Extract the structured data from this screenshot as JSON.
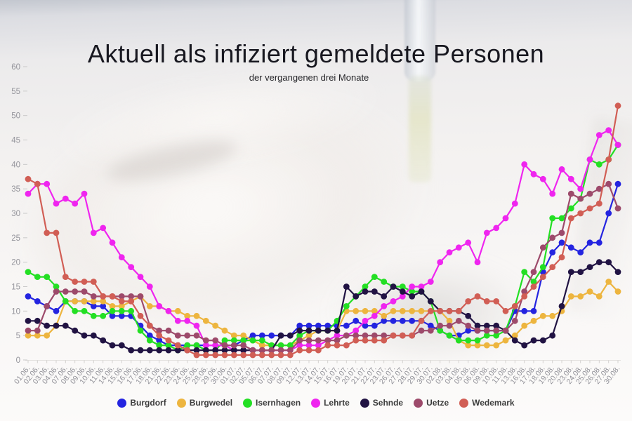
{
  "header": {
    "title": "Aktuell als infiziert gemeldete Personen",
    "subtitle": "der vergangenen drei Monate"
  },
  "chart_data": {
    "type": "line",
    "title": "Aktuell als infiziert gemeldete Personen",
    "subtitle": "der vergangenen drei Monate",
    "grid": false,
    "legend_position": "bottom",
    "y_axis": {
      "min": 0,
      "max": 60,
      "step": 5,
      "tick_labels": [
        "0",
        "5",
        "10",
        "15",
        "20",
        "25",
        "30",
        "35",
        "40",
        "45",
        "50",
        "55",
        "60"
      ]
    },
    "x_tick_labels": [
      "01.06.",
      "02.06.",
      "03.06.",
      "04.06.",
      "07.06.",
      "08.06.",
      "09.06.",
      "10.06.",
      "11.06.",
      "14.06.",
      "15.06.",
      "16.06.",
      "17.06.",
      "18.06.",
      "21.06.",
      "22.06.",
      "23.06.",
      "24.06.",
      "25.06.",
      "28.06.",
      "29.06.",
      "30.06.",
      "01.07.",
      "02.07.",
      "05.07.",
      "06.07.",
      "07.07.",
      "08.07.",
      "09.07.",
      "12.07.",
      "13.07.",
      "14.07.",
      "15.07.",
      "16.07.",
      "19.07.",
      "20.07.",
      "21.07.",
      "22.07.",
      "23.07.",
      "26.07.",
      "27.07.",
      "28.07.",
      "29.07.",
      "30.07.",
      "02.08.",
      "03.08.",
      "04.08.",
      "05.08.",
      "06.08.",
      "09.08.",
      "10.08.",
      "11.08.",
      "13.08.",
      "16.08.",
      "17.08.",
      "18.08.",
      "19.08.",
      "20.08.",
      "23.08.",
      "24.08.",
      "25.08.",
      "26.08.",
      "27.08.",
      "30.08."
    ],
    "series": [
      {
        "name": "Burgdorf",
        "color": "#2424e0",
        "values": [
          13,
          12,
          11,
          10,
          12,
          12,
          12,
          11,
          11,
          9,
          9,
          9,
          7,
          5,
          4,
          3,
          3,
          3,
          3,
          3,
          3,
          3,
          3,
          4,
          5,
          5,
          5,
          5,
          5,
          7,
          7,
          7,
          7,
          7,
          7,
          8,
          7,
          7,
          8,
          8,
          8,
          8,
          8,
          7,
          6,
          5,
          5,
          6,
          6,
          6,
          6,
          6,
          10,
          10,
          10,
          18,
          22,
          24,
          23,
          22,
          24,
          24,
          30,
          36
        ]
      },
      {
        "name": "Burgwedel",
        "color": "#edb53f",
        "values": [
          5,
          5,
          5,
          7,
          12,
          12,
          12,
          12,
          12,
          11,
          11,
          12,
          13,
          11,
          11,
          10,
          10,
          9,
          9,
          8,
          7,
          6,
          5,
          5,
          4,
          3,
          3,
          3,
          3,
          4,
          5,
          6,
          6,
          6,
          10,
          10,
          10,
          10,
          9,
          10,
          10,
          10,
          10,
          10,
          10,
          8,
          4,
          3,
          3,
          3,
          3,
          4,
          5,
          7,
          8,
          9,
          9,
          10,
          13,
          13,
          14,
          13,
          16,
          14
        ]
      },
      {
        "name": "Isernhagen",
        "color": "#23df23",
        "values": [
          18,
          17,
          17,
          15,
          12,
          10,
          10,
          9,
          9,
          10,
          10,
          10,
          6,
          4,
          3,
          3,
          2,
          3,
          3,
          2,
          2,
          4,
          4,
          4,
          4,
          4,
          3,
          3,
          3,
          5,
          6,
          6,
          6,
          8,
          11,
          13,
          15,
          17,
          16,
          15,
          15,
          14,
          14,
          12,
          6,
          5,
          4,
          4,
          4,
          5,
          5,
          6,
          11,
          18,
          16,
          19,
          29,
          29,
          31,
          33,
          41,
          40,
          41,
          44
        ]
      },
      {
        "name": "Lehrte",
        "color": "#ef25ef",
        "values": [
          34,
          36,
          36,
          32,
          33,
          32,
          34,
          26,
          27,
          24,
          21,
          19,
          17,
          15,
          11,
          10,
          8,
          8,
          7,
          3,
          3,
          3,
          2,
          2,
          2,
          2,
          2,
          2,
          2,
          3,
          3,
          3,
          4,
          5,
          5,
          6,
          8,
          9,
          11,
          12,
          13,
          15,
          15,
          16,
          20,
          22,
          23,
          24,
          20,
          26,
          27,
          29,
          32,
          40,
          38,
          37,
          34,
          39,
          37,
          35,
          41,
          46,
          47,
          44
        ]
      },
      {
        "name": "Sehnde",
        "color": "#211343",
        "values": [
          8,
          8,
          7,
          7,
          7,
          6,
          5,
          5,
          4,
          3,
          3,
          2,
          2,
          2,
          2,
          2,
          2,
          2,
          2,
          2,
          2,
          2,
          2,
          2,
          2,
          2,
          2,
          5,
          5,
          6,
          6,
          6,
          6,
          6,
          15,
          13,
          14,
          14,
          13,
          15,
          14,
          13,
          14,
          12,
          10,
          10,
          10,
          9,
          7,
          7,
          7,
          6,
          4,
          3,
          4,
          4,
          5,
          11,
          18,
          18,
          19,
          20,
          20,
          18
        ]
      },
      {
        "name": "Uetze",
        "color": "#9d4a6b",
        "values": [
          6,
          6,
          11,
          14,
          14,
          14,
          14,
          13,
          13,
          13,
          13,
          13,
          13,
          7,
          6,
          6,
          5,
          5,
          5,
          4,
          4,
          3,
          3,
          3,
          2,
          2,
          2,
          2,
          2,
          4,
          4,
          4,
          4,
          4,
          5,
          5,
          5,
          5,
          5,
          5,
          5,
          5,
          6,
          6,
          7,
          7,
          8,
          7,
          6,
          6,
          6,
          6,
          8,
          14,
          18,
          23,
          25,
          26,
          34,
          33,
          34,
          35,
          36,
          31
        ]
      },
      {
        "name": "Wedemark",
        "color": "#d15e55",
        "values": [
          37,
          36,
          26,
          26,
          17,
          16,
          16,
          16,
          13,
          13,
          12,
          12,
          9,
          7,
          5,
          4,
          3,
          2,
          1,
          1,
          1,
          1,
          1,
          1,
          1,
          1,
          1,
          1,
          1,
          2,
          2,
          2,
          3,
          3,
          3,
          4,
          4,
          4,
          4,
          5,
          5,
          5,
          8,
          10,
          10,
          10,
          10,
          12,
          13,
          12,
          12,
          10,
          11,
          13,
          15,
          17,
          19,
          21,
          29,
          30,
          31,
          32,
          41,
          52
        ]
      }
    ]
  }
}
